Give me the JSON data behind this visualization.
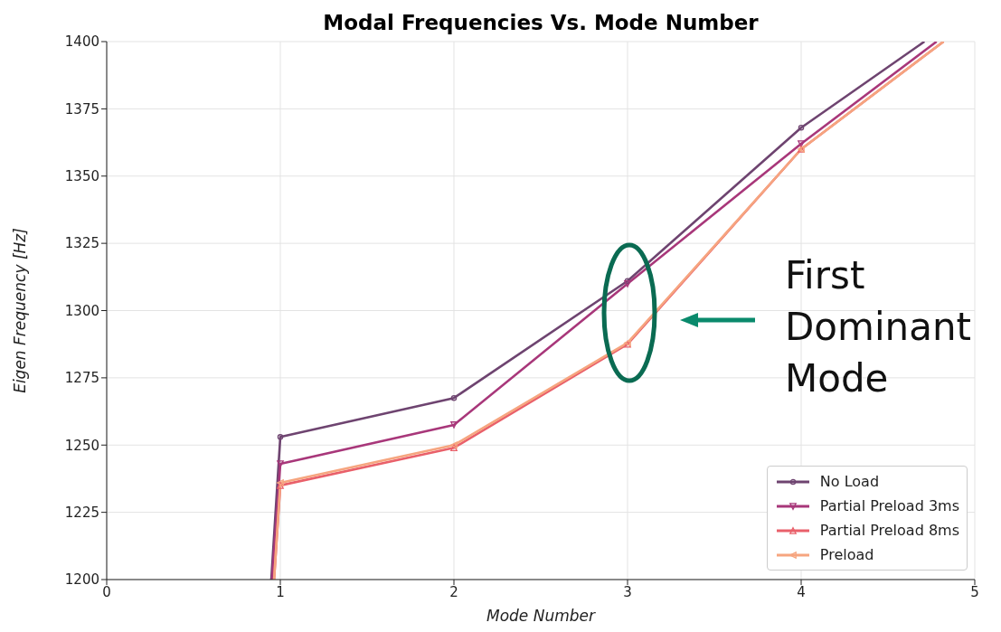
{
  "chart_data": {
    "type": "line",
    "title": "Modal Frequencies Vs. Mode Number",
    "xlabel": "Mode Number",
    "ylabel": "Eigen Frequency [Hz]",
    "series": [
      {
        "name": "No Load",
        "color": "#6e4470",
        "marker": "circle",
        "x": [
          0.948,
          1,
          2,
          3,
          4,
          4.71
        ],
        "values": [
          1200,
          1253,
          1267.5,
          1311,
          1368,
          1400
        ]
      },
      {
        "name": "Partial Preload 3ms",
        "color": "#a8377a",
        "marker": "triangle-down",
        "x": [
          0.953,
          1,
          2,
          3,
          4,
          4.78
        ],
        "values": [
          1200,
          1243,
          1257.5,
          1310,
          1362,
          1400
        ]
      },
      {
        "name": "Partial Preload 8ms",
        "color": "#e9606a",
        "marker": "triangle-up",
        "x": [
          0.964,
          1,
          2,
          3,
          4,
          4.82
        ],
        "values": [
          1200,
          1235,
          1249,
          1287.5,
          1360,
          1400
        ]
      },
      {
        "name": "Preload",
        "color": "#f6a57f",
        "marker": "triangle-left",
        "x": [
          0.964,
          1,
          2,
          3,
          4,
          4.82
        ],
        "values": [
          1200,
          1236,
          1250,
          1288,
          1360,
          1400
        ]
      }
    ],
    "xlim": [
      0,
      5
    ],
    "xticks": [
      0,
      1,
      2,
      3,
      4,
      5
    ],
    "ylim": [
      1200,
      1400
    ],
    "yticks": [
      1200,
      1225,
      1250,
      1275,
      1300,
      1325,
      1350,
      1375,
      1400
    ],
    "grid": true,
    "legend": "bottom right",
    "line_style": "solid",
    "annotations": [
      "First Dominant Mode"
    ]
  }
}
